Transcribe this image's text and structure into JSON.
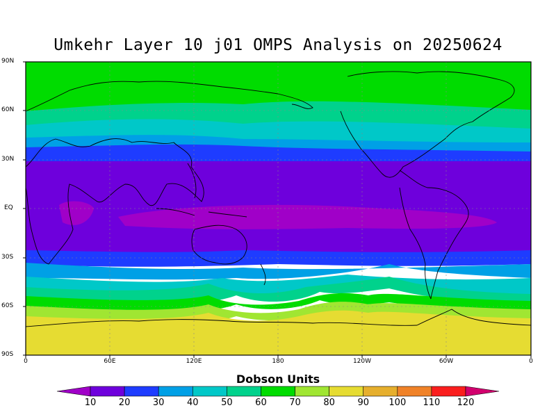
{
  "title": "Umkehr Layer 10 j01 OMPS Analysis on 20250624",
  "lat_labels": [
    "90N",
    "60N",
    "30N",
    "EQ",
    "30S",
    "60S",
    "90S"
  ],
  "lon_labels": [
    "0",
    "60E",
    "120E",
    "180",
    "120W",
    "60W",
    "0"
  ],
  "colorbar": {
    "title": "Dobson Units",
    "ticks": [
      "10",
      "20",
      "30",
      "40",
      "50",
      "60",
      "70",
      "80",
      "90",
      "100",
      "110",
      "120"
    ],
    "colors": [
      "#a000c8",
      "#6e00dc",
      "#1e3cff",
      "#00a0e6",
      "#00c8c8",
      "#00d28c",
      "#00dc00",
      "#a0e632",
      "#e6dc32",
      "#e6af2d",
      "#f08228",
      "#fa1e1e",
      "#d2006e"
    ]
  }
}
